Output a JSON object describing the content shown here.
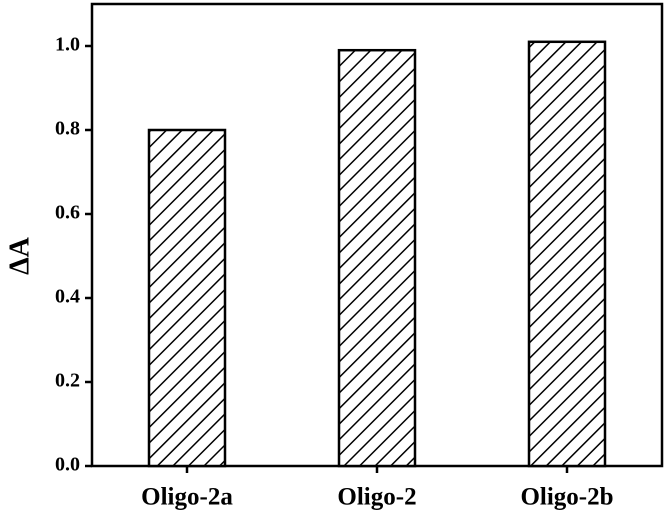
{
  "chart_data": {
    "type": "bar",
    "y_label": "ΔA",
    "categories": [
      "Oligo-2a",
      "Oligo-2",
      "Oligo-2b"
    ],
    "values": [
      0.8,
      0.99,
      1.01
    ],
    "color": "#000000",
    "ylim": [
      0,
      1.1
    ],
    "yticks": [
      {
        "value": 0,
        "label": "0.0"
      },
      0.2,
      0.4,
      0.6,
      0.8,
      {
        "value": 1,
        "label": "1.0"
      }
    ],
    "grid": false
  }
}
